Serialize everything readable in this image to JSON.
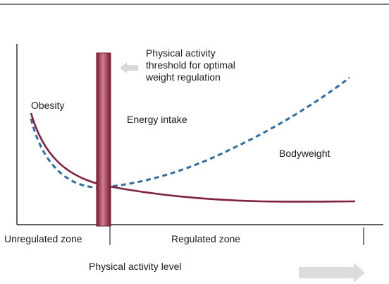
{
  "chart_data": {
    "type": "line",
    "xlabel": "Physical activity level",
    "ylabel": "",
    "series": [
      {
        "name": "Energy intake",
        "style": "solid",
        "color": "#8a1f3d"
      },
      {
        "name": "Bodyweight",
        "style": "dashed",
        "color": "#2a6db0"
      }
    ],
    "annotations": {
      "obesity": "Obesity",
      "threshold": [
        "Physical activity",
        "threshold for optimal",
        "weight regulation"
      ]
    },
    "zones": {
      "unregulated": "Unregulated zone",
      "regulated": "Regulated zone"
    },
    "colors": {
      "threshold_bar": "#a0344d",
      "threshold_bar_light": "#cf7f90",
      "arrow": "#d9d9d9",
      "axis": "#000000"
    },
    "icons": {
      "threshold_pointer": "left-arrow-icon",
      "direction": "right-arrow-icon"
    }
  }
}
